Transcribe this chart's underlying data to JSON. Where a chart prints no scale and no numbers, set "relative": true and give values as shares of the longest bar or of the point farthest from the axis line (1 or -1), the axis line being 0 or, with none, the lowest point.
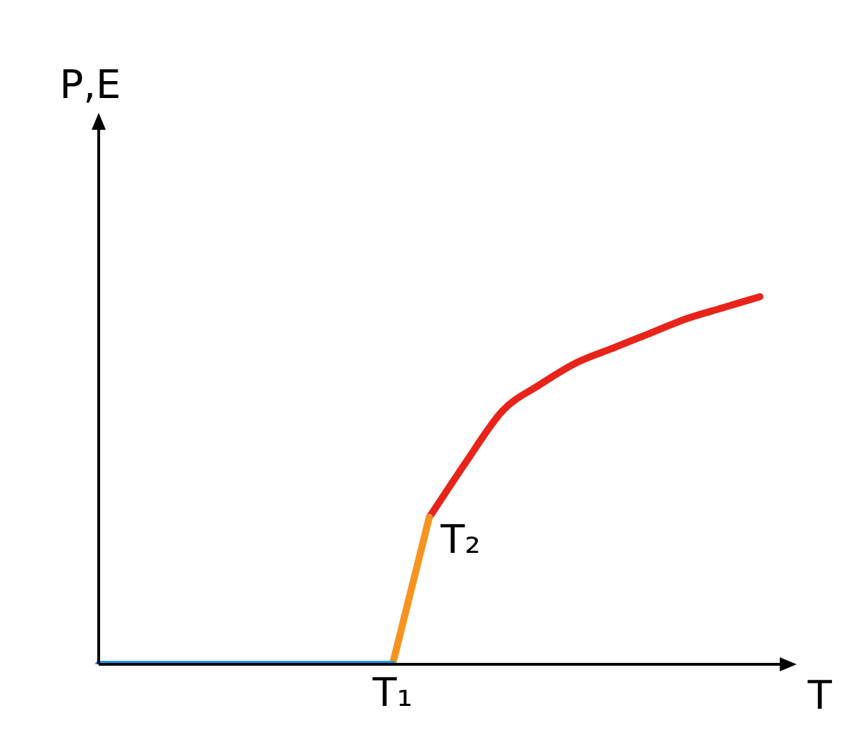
{
  "chart_data": {
    "type": "line",
    "relative": true,
    "xlabel": "T",
    "ylabel": "P,E",
    "grid": false,
    "legend": false,
    "marker": "none",
    "line_style": "solid",
    "categories": [
      null,
      null,
      null,
      null,
      null,
      null,
      null,
      null,
      null,
      null,
      null,
      null,
      null,
      null,
      null,
      null,
      null,
      null,
      null,
      null
    ],
    "series": [
      {
        "color": "#1e9be6",
        "values": [
          0,
          0,
          0,
          0,
          0,
          0,
          0,
          0,
          0,
          null,
          null,
          null,
          null,
          null,
          null,
          null,
          null,
          null,
          null,
          null
        ]
      },
      {
        "color": "#f7941d",
        "values": [
          null,
          null,
          null,
          null,
          null,
          null,
          null,
          null,
          0,
          0.4,
          null,
          null,
          null,
          null,
          null,
          null,
          null,
          null,
          null,
          null
        ]
      },
      {
        "color": "#e8241a",
        "values": [
          null,
          null,
          null,
          null,
          null,
          null,
          null,
          null,
          null,
          0.4,
          0.55,
          0.69,
          0.76,
          0.82,
          0.86,
          0.9,
          0.94,
          0.97,
          1,
          null
        ]
      }
    ],
    "annotations": [
      "T₁",
      "T₂"
    ]
  }
}
